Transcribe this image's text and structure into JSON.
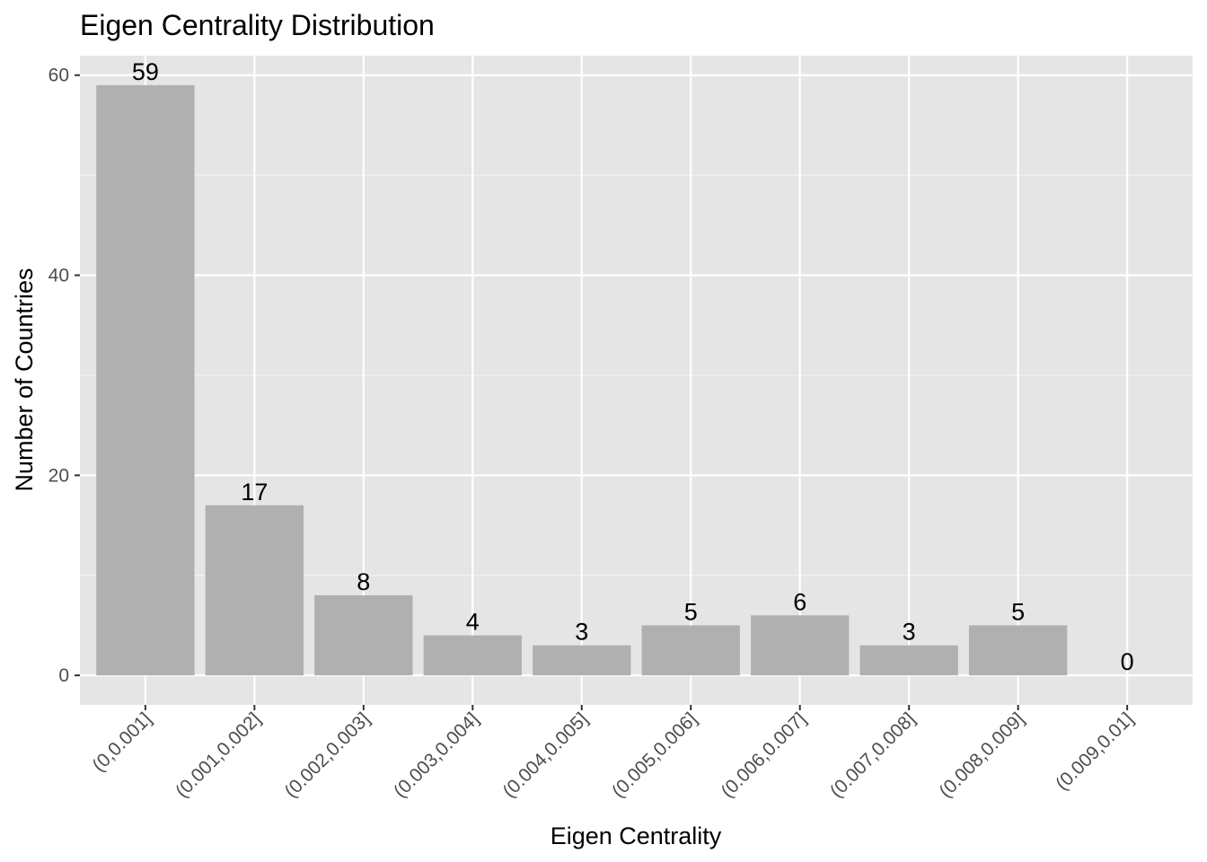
{
  "chart_data": {
    "type": "bar",
    "title": "Eigen Centrality Distribution",
    "xlabel": "Eigen Centrality",
    "ylabel": "Number of Countries",
    "categories": [
      "(0,0.001]",
      "(0.001,0.002]",
      "(0.002,0.003]",
      "(0.003,0.004]",
      "(0.004,0.005]",
      "(0.005,0.006]",
      "(0.006,0.007]",
      "(0.007,0.008]",
      "(0.008,0.009]",
      "(0.009,0.01]"
    ],
    "values": [
      59,
      17,
      8,
      4,
      3,
      5,
      6,
      3,
      5,
      0
    ],
    "data_labels": [
      "59",
      "17",
      "8",
      "4",
      "3",
      "5",
      "6",
      "3",
      "5",
      "0"
    ],
    "ylim": [
      -2.95,
      61.95
    ],
    "yticks": [
      0,
      20,
      40,
      60
    ],
    "ytick_labels": [
      "0",
      "20",
      "40",
      "60"
    ],
    "grid": true,
    "legend": "none",
    "colors": {
      "bar": "#b0b0b0",
      "panel_background": "#e5e5e5",
      "grid_major": "#ffffff",
      "grid_minor": "#f2f2f2"
    }
  }
}
